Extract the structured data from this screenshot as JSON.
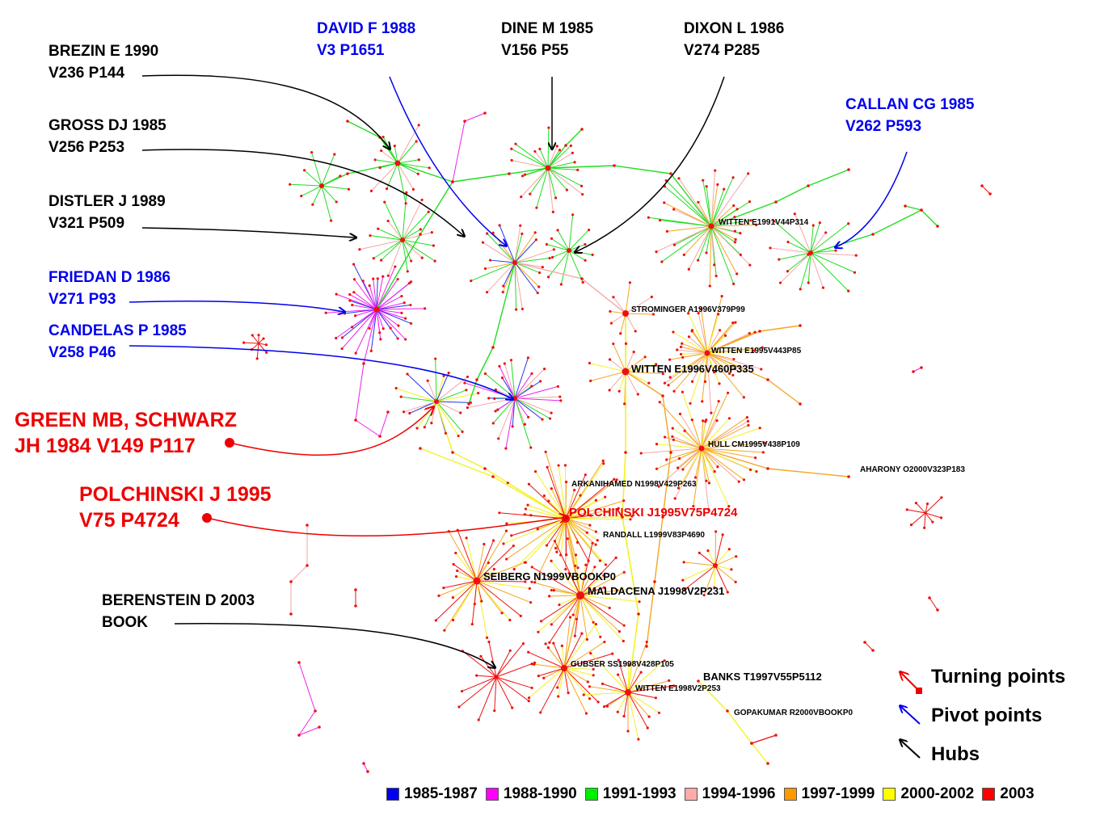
{
  "annotations": {
    "brezin": {
      "line1": "BREZIN E 1990",
      "line2": "V236 P144"
    },
    "gross": {
      "line1": "GROSS DJ 1985",
      "line2": "V256 P253"
    },
    "distler": {
      "line1": "DISTLER J 1989",
      "line2": "V321 P509"
    },
    "friedan": {
      "line1": "FRIEDAN D 1986",
      "line2": "V271 P93"
    },
    "candelas": {
      "line1": "CANDELAS P 1985",
      "line2": "V258 P46"
    },
    "green": {
      "line1": "GREEN MB, SCHWARZ",
      "line2": "JH 1984 V149 P117"
    },
    "polchinski": {
      "line1": "POLCHINSKI J 1995",
      "line2": "V75 P4724"
    },
    "berenstein": {
      "line1": "BERENSTEIN D 2003",
      "line2": "BOOK"
    },
    "david": {
      "line1": "DAVID F 1988",
      "line2": "V3 P1651"
    },
    "dine": {
      "line1": "DINE M 1985",
      "line2": "V156 P55"
    },
    "dixon": {
      "line1": "DIXON L 1986",
      "line2": "V274 P285"
    },
    "callan": {
      "line1": "CALLAN CG 1985",
      "line2": "V262 P593"
    }
  },
  "node_labels": {
    "witten1991": "WITTEN E1991V44P314",
    "strominger": "STROMINGER A1996V379P99",
    "witten1995": "WITTEN E1995V443P85",
    "witten1996": "WITTEN E1996V460P335",
    "hull": "HULL CM1995V438P109",
    "aharony": "AHARONY O2000V323P183",
    "arkani": "ARKANIHAMED N1998V429P263",
    "polchinski": "POLCHINSKI J1995V75P4724",
    "randall": "RANDALL L1999V83P4690",
    "seiberg": "SEIBERG N1999VBOOKP0",
    "maldacena": "MALDACENA J1998V2P231",
    "gubser": "GUBSER SS1998V428P105",
    "banks": "BANKS T1997V55P5112",
    "witten1998": "WITTEN E1998V2P253",
    "gopakumar": "GOPAKUMAR R2000VBOOKP0"
  },
  "key": {
    "turning": "Turning points",
    "pivot": "Pivot points",
    "hubs": "Hubs"
  },
  "legend": [
    {
      "label": "1985-1987",
      "color": "#0000ee"
    },
    {
      "label": "1988-1990",
      "color": "#ff00ff"
    },
    {
      "label": "1991-1993",
      "color": "#00ee00"
    },
    {
      "label": "1994-1996",
      "color": "#ffaaaa"
    },
    {
      "label": "1997-1999",
      "color": "#ff9900"
    },
    {
      "label": "2000-2002",
      "color": "#ffff00"
    },
    {
      "label": "2003",
      "color": "#ff0000"
    }
  ],
  "colors": {
    "hub_arrow": "#000000",
    "pivot_arrow": "#0000ee",
    "turning_arrow": "#ee0000",
    "node": "#ee0000"
  }
}
